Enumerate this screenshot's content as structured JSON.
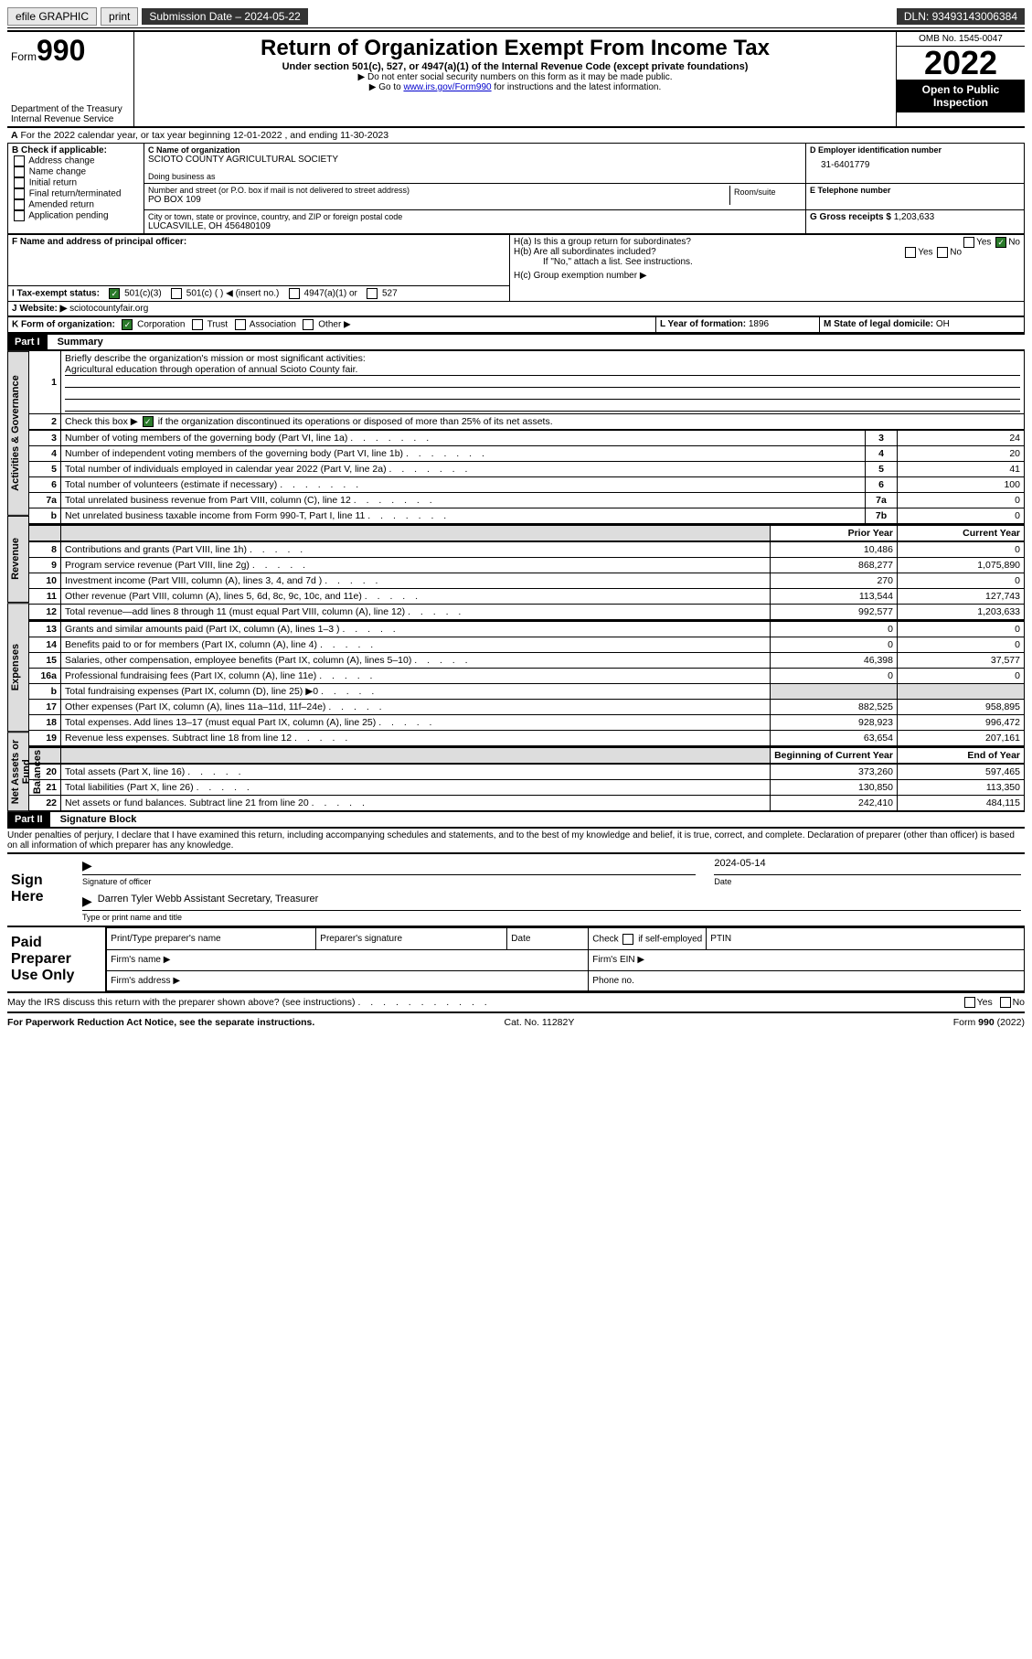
{
  "topbar": {
    "efile": "efile GRAPHIC",
    "print": "print",
    "submission": "Submission Date – 2024-05-22",
    "dln": "DLN: 93493143006384"
  },
  "header": {
    "form_label": "Form",
    "form_num": "990",
    "dept": "Department of the Treasury",
    "irs": "Internal Revenue Service",
    "title": "Return of Organization Exempt From Income Tax",
    "subtitle": "Under section 501(c), 527, or 4947(a)(1) of the Internal Revenue Code (except private foundations)",
    "note1": "▶ Do not enter social security numbers on this form as it may be made public.",
    "note2_pre": "▶ Go to ",
    "note2_link": "www.irs.gov/Form990",
    "note2_post": " for instructions and the latest information.",
    "omb": "OMB No. 1545-0047",
    "year": "2022",
    "open": "Open to Public Inspection"
  },
  "period": {
    "line": "For the 2022 calendar year, or tax year beginning 12-01-2022      , and ending 11-30-2023"
  },
  "blockB": {
    "label": "B Check if applicable:",
    "items": [
      "Address change",
      "Name change",
      "Initial return",
      "Final return/terminated",
      "Amended return",
      "Application pending"
    ]
  },
  "blockC": {
    "name_label": "C Name of organization",
    "name": "SCIOTO COUNTY AGRICULTURAL SOCIETY",
    "dba_label": "Doing business as",
    "street_label": "Number and street (or P.O. box if mail is not delivered to street address)",
    "room_label": "Room/suite",
    "street": "PO BOX 109",
    "city_label": "City or town, state or province, country, and ZIP or foreign postal code",
    "city": "LUCASVILLE, OH  456480109"
  },
  "blockD": {
    "label": "D Employer identification number",
    "value": "31-6401779"
  },
  "blockE": {
    "label": "E Telephone number"
  },
  "blockG": {
    "label": "G Gross receipts $",
    "value": "1,203,633"
  },
  "blockF": {
    "label": "F Name and address of principal officer:"
  },
  "blockH": {
    "ha": "H(a)  Is this a group return for subordinates?",
    "hb": "H(b)  Are all subordinates included?",
    "hb_note": "If \"No,\" attach a list. See instructions.",
    "hc": "H(c)  Group exemption number ▶"
  },
  "blockI": {
    "label": "I   Tax-exempt status:",
    "opts": [
      "501(c)(3)",
      "501(c) (   ) ◀ (insert no.)",
      "4947(a)(1) or",
      "527"
    ]
  },
  "blockJ": {
    "label": "J   Website: ▶",
    "value": "sciotocountyfair.org"
  },
  "blockK": {
    "label": "K Form of organization:",
    "opts": [
      "Corporation",
      "Trust",
      "Association",
      "Other ▶"
    ]
  },
  "blockL": {
    "label": "L Year of formation:",
    "value": "1896"
  },
  "blockM": {
    "label": "M State of legal domicile:",
    "value": "OH"
  },
  "part1": {
    "bar": "Part I",
    "title": "Summary"
  },
  "tabs": {
    "act_gov": "Activities & Governance",
    "rev": "Revenue",
    "exp": "Expenses",
    "net": "Net Assets or Fund Balances"
  },
  "summary": {
    "l1": "Briefly describe the organization's mission or most significant activities:",
    "l1_text": "Agricultural education through operation of annual Scioto County fair.",
    "l2": "Check this box ▶",
    "l2_post": " if the organization discontinued its operations or disposed of more than 25% of its net assets.",
    "rows_gov": [
      {
        "n": "3",
        "d": "Number of voting members of the governing body (Part VI, line 1a)",
        "l": "3",
        "v": "24"
      },
      {
        "n": "4",
        "d": "Number of independent voting members of the governing body (Part VI, line 1b)",
        "l": "4",
        "v": "20"
      },
      {
        "n": "5",
        "d": "Total number of individuals employed in calendar year 2022 (Part V, line 2a)",
        "l": "5",
        "v": "41"
      },
      {
        "n": "6",
        "d": "Total number of volunteers (estimate if necessary)",
        "l": "6",
        "v": "100"
      },
      {
        "n": "7a",
        "d": "Total unrelated business revenue from Part VIII, column (C), line 12",
        "l": "7a",
        "v": "0"
      },
      {
        "n": "b",
        "d": "Net unrelated business taxable income from Form 990-T, Part I, line 11",
        "l": "7b",
        "v": "0"
      }
    ],
    "head_prior": "Prior Year",
    "head_curr": "Current Year",
    "rows_rev": [
      {
        "n": "8",
        "d": "Contributions and grants (Part VIII, line 1h)",
        "p": "10,486",
        "c": "0"
      },
      {
        "n": "9",
        "d": "Program service revenue (Part VIII, line 2g)",
        "p": "868,277",
        "c": "1,075,890"
      },
      {
        "n": "10",
        "d": "Investment income (Part VIII, column (A), lines 3, 4, and 7d )",
        "p": "270",
        "c": "0"
      },
      {
        "n": "11",
        "d": "Other revenue (Part VIII, column (A), lines 5, 6d, 8c, 9c, 10c, and 11e)",
        "p": "113,544",
        "c": "127,743"
      },
      {
        "n": "12",
        "d": "Total revenue—add lines 8 through 11 (must equal Part VIII, column (A), line 12)",
        "p": "992,577",
        "c": "1,203,633"
      }
    ],
    "rows_exp": [
      {
        "n": "13",
        "d": "Grants and similar amounts paid (Part IX, column (A), lines 1–3 )",
        "p": "0",
        "c": "0"
      },
      {
        "n": "14",
        "d": "Benefits paid to or for members (Part IX, column (A), line 4)",
        "p": "0",
        "c": "0"
      },
      {
        "n": "15",
        "d": "Salaries, other compensation, employee benefits (Part IX, column (A), lines 5–10)",
        "p": "46,398",
        "c": "37,577"
      },
      {
        "n": "16a",
        "d": "Professional fundraising fees (Part IX, column (A), line 11e)",
        "p": "0",
        "c": "0"
      },
      {
        "n": "b",
        "d": "Total fundraising expenses (Part IX, column (D), line 25) ▶0",
        "p": "",
        "c": "",
        "shade": true
      },
      {
        "n": "17",
        "d": "Other expenses (Part IX, column (A), lines 11a–11d, 11f–24e)",
        "p": "882,525",
        "c": "958,895"
      },
      {
        "n": "18",
        "d": "Total expenses. Add lines 13–17 (must equal Part IX, column (A), line 25)",
        "p": "928,923",
        "c": "996,472"
      },
      {
        "n": "19",
        "d": "Revenue less expenses. Subtract line 18 from line 12",
        "p": "63,654",
        "c": "207,161"
      }
    ],
    "head_begin": "Beginning of Current Year",
    "head_end": "End of Year",
    "rows_net": [
      {
        "n": "20",
        "d": "Total assets (Part X, line 16)",
        "p": "373,260",
        "c": "597,465"
      },
      {
        "n": "21",
        "d": "Total liabilities (Part X, line 26)",
        "p": "130,850",
        "c": "113,350"
      },
      {
        "n": "22",
        "d": "Net assets or fund balances. Subtract line 21 from line 20",
        "p": "242,410",
        "c": "484,115"
      }
    ]
  },
  "part2": {
    "bar": "Part II",
    "title": "Signature Block"
  },
  "declaration": "Under penalties of perjury, I declare that I have examined this return, including accompanying schedules and statements, and to the best of my knowledge and belief, it is true, correct, and complete. Declaration of preparer (other than officer) is based on all information of which preparer has any knowledge.",
  "sign": {
    "left": "Sign Here",
    "sig_label": "Signature of officer",
    "date": "2024-05-14",
    "date_label": "Date",
    "name": "Darren Tyler Webb Assistant Secretary, Treasurer",
    "name_label": "Type or print name and title"
  },
  "paid": {
    "left": "Paid Preparer Use Only",
    "h1": "Print/Type preparer's name",
    "h2": "Preparer's signature",
    "h3": "Date",
    "h4_pre": "Check",
    "h4_post": "if self-employed",
    "h5": "PTIN",
    "firm_name": "Firm's name     ▶",
    "firm_ein": "Firm's EIN ▶",
    "firm_addr": "Firm's address ▶",
    "phone": "Phone no."
  },
  "footer": {
    "discuss": "May the IRS discuss this return with the preparer shown above? (see instructions)",
    "paperwork": "For Paperwork Reduction Act Notice, see the separate instructions.",
    "catno": "Cat. No. 11282Y",
    "formno": "Form 990 (2022)"
  },
  "yes": "Yes",
  "no": "No"
}
